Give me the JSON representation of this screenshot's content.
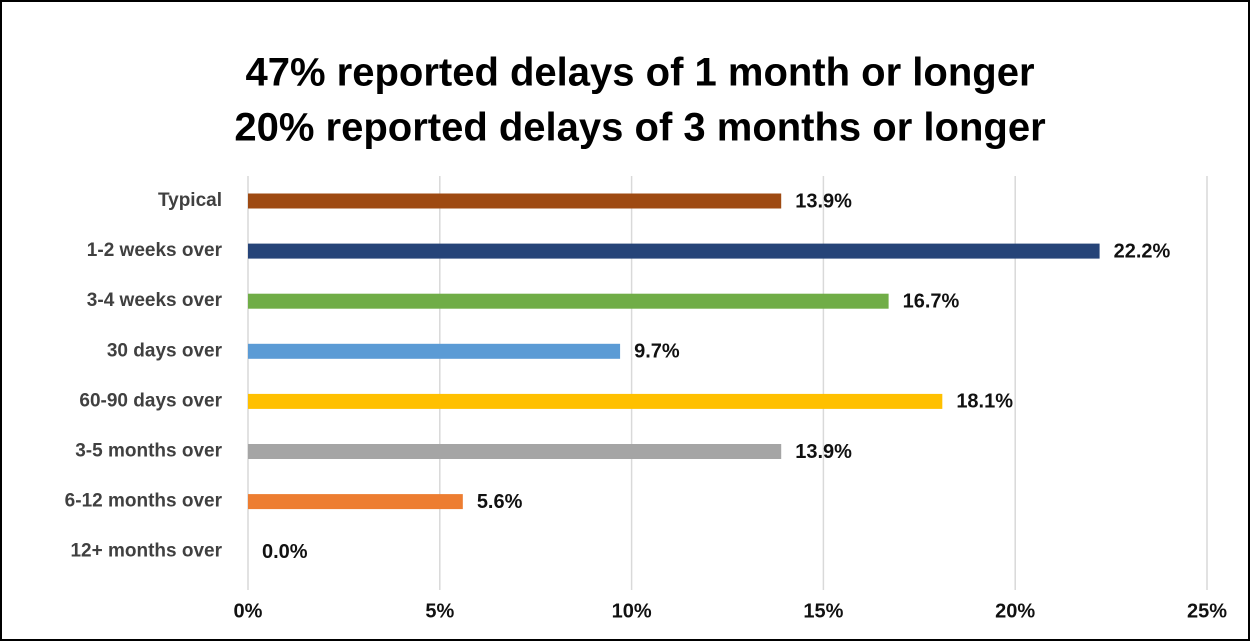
{
  "chart_data": {
    "type": "hbar",
    "title": [
      "47% reported delays of 1 month or longer",
      "20% reported delays of 3 months or longer"
    ],
    "categories": [
      "Typical",
      "1-2 weeks over",
      "3-4 weeks over",
      "30 days over",
      "60-90 days over",
      "3-5 months over",
      "6-12 months over",
      "12+ months over"
    ],
    "values": [
      13.9,
      22.2,
      16.7,
      9.7,
      18.1,
      13.9,
      5.6,
      0.0
    ],
    "value_labels": [
      "13.9%",
      "22.2%",
      "16.7%",
      "9.7%",
      "18.1%",
      "13.9%",
      "5.6%",
      "0.0%"
    ],
    "colors": [
      "#9e4a12",
      "#264478",
      "#70ad47",
      "#5b9bd5",
      "#ffc000",
      "#a5a5a5",
      "#ed7d31",
      "#4472c4"
    ],
    "xlim": [
      0,
      25
    ],
    "xticks": [
      {
        "value": 0,
        "label": "0%"
      },
      {
        "value": 5,
        "label": "5%"
      },
      {
        "value": 10,
        "label": "10%"
      },
      {
        "value": 15,
        "label": "15%"
      },
      {
        "value": 20,
        "label": "20%"
      },
      {
        "value": 25,
        "label": "25%"
      }
    ],
    "grid": true
  }
}
